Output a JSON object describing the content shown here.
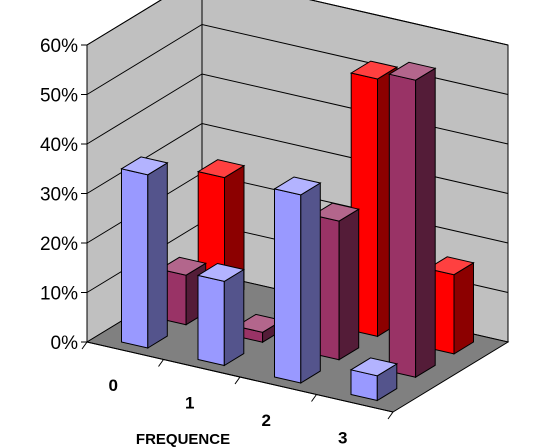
{
  "chart_data": {
    "type": "bar",
    "style": "3d-column-depth",
    "title": "",
    "xlabel": "FREQUENCE",
    "ylabel": "",
    "y_unit": "%",
    "ylim": [
      0,
      60
    ],
    "yticks": [
      "0%",
      "10%",
      "20%",
      "30%",
      "40%",
      "50%",
      "60%"
    ],
    "ytick_values": [
      0,
      10,
      20,
      30,
      40,
      50,
      60
    ],
    "categories": [
      "0",
      "1",
      "2",
      "3"
    ],
    "grid": true,
    "legend": "none",
    "series": [
      {
        "color": "#9999ff",
        "values": [
          35,
          17,
          38,
          5
        ]
      },
      {
        "color": "#993366",
        "values": [
          10,
          2,
          28,
          60
        ]
      },
      {
        "color": "#ff0000",
        "values": [
          25,
          0,
          52,
          16
        ]
      }
    ],
    "wall_color": "#c0c0c0",
    "floor_color": "#808080"
  }
}
